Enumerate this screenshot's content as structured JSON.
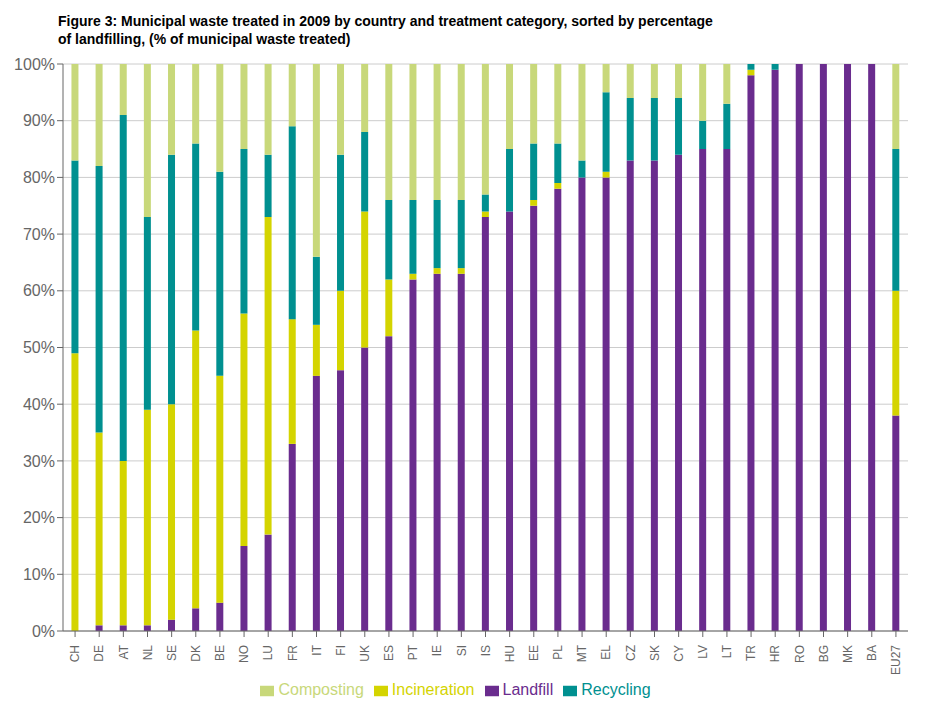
{
  "chart_data": {
    "type": "bar",
    "title": "Figure 3: Municipal waste treated in 2009 by country and treatment category, sorted by percentage\nof landfilling, (% of municipal waste treated)",
    "categories": [
      "CH",
      "DE",
      "AT",
      "NL",
      "SE",
      "DK",
      "BE",
      "NO",
      "LU",
      "FR",
      "IT",
      "FI",
      "UK",
      "ES",
      "PT",
      "IE",
      "SI",
      "IS",
      "HU",
      "EE",
      "PL",
      "MT",
      "EL",
      "CZ",
      "SK",
      "CY",
      "LV",
      "LT",
      "TR",
      "HR",
      "RO",
      "BG",
      "MK",
      "BA",
      "EU27"
    ],
    "series": [
      {
        "name": "Landfill",
        "color": "#6a2c8e",
        "values": [
          0,
          1,
          1,
          1,
          2,
          4,
          5,
          15,
          17,
          33,
          45,
          46,
          50,
          52,
          62,
          63,
          63,
          73,
          74,
          75,
          78,
          80,
          80,
          83,
          83,
          84,
          85,
          85,
          98,
          99,
          100,
          100,
          100,
          100,
          38
        ]
      },
      {
        "name": "Incineration",
        "color": "#d4d400",
        "values": [
          49,
          34,
          29,
          38,
          38,
          49,
          40,
          41,
          56,
          22,
          9,
          14,
          24,
          10,
          1,
          1,
          1,
          1,
          0,
          1,
          1,
          0,
          1,
          0,
          0,
          0,
          0,
          0,
          1,
          0,
          0,
          0,
          0,
          0,
          22
        ]
      },
      {
        "name": "Recycling",
        "color": "#009090",
        "values": [
          34,
          47,
          61,
          34,
          44,
          33,
          36,
          29,
          11,
          34,
          12,
          24,
          14,
          14,
          13,
          12,
          12,
          3,
          11,
          10,
          7,
          3,
          14,
          11,
          11,
          10,
          5,
          8,
          1,
          1,
          0,
          0,
          0,
          0,
          25
        ]
      },
      {
        "name": "Composting",
        "color": "#c8d87a",
        "values": [
          17,
          18,
          9,
          27,
          16,
          14,
          19,
          15,
          16,
          11,
          34,
          16,
          12,
          24,
          24,
          24,
          24,
          23,
          15,
          14,
          14,
          17,
          5,
          6,
          6,
          6,
          10,
          7,
          0,
          0,
          0,
          0,
          0,
          0,
          15
        ]
      }
    ],
    "ylim": [
      0,
      100
    ],
    "yticks": [
      {
        "value": 0,
        "label": "0%"
      },
      {
        "value": 10,
        "label": "10%"
      },
      {
        "value": 20,
        "label": "20%"
      },
      {
        "value": 30,
        "label": "30%"
      },
      {
        "value": 40,
        "label": "40%"
      },
      {
        "value": 50,
        "label": "50%"
      },
      {
        "value": 60,
        "label": "60%"
      },
      {
        "value": 70,
        "label": "70%"
      },
      {
        "value": 80,
        "label": "80%"
      },
      {
        "value": 90,
        "label": "90%"
      },
      {
        "value": 100,
        "label": "100%"
      }
    ],
    "grid": true,
    "stacked": true,
    "legend": "bottom"
  }
}
